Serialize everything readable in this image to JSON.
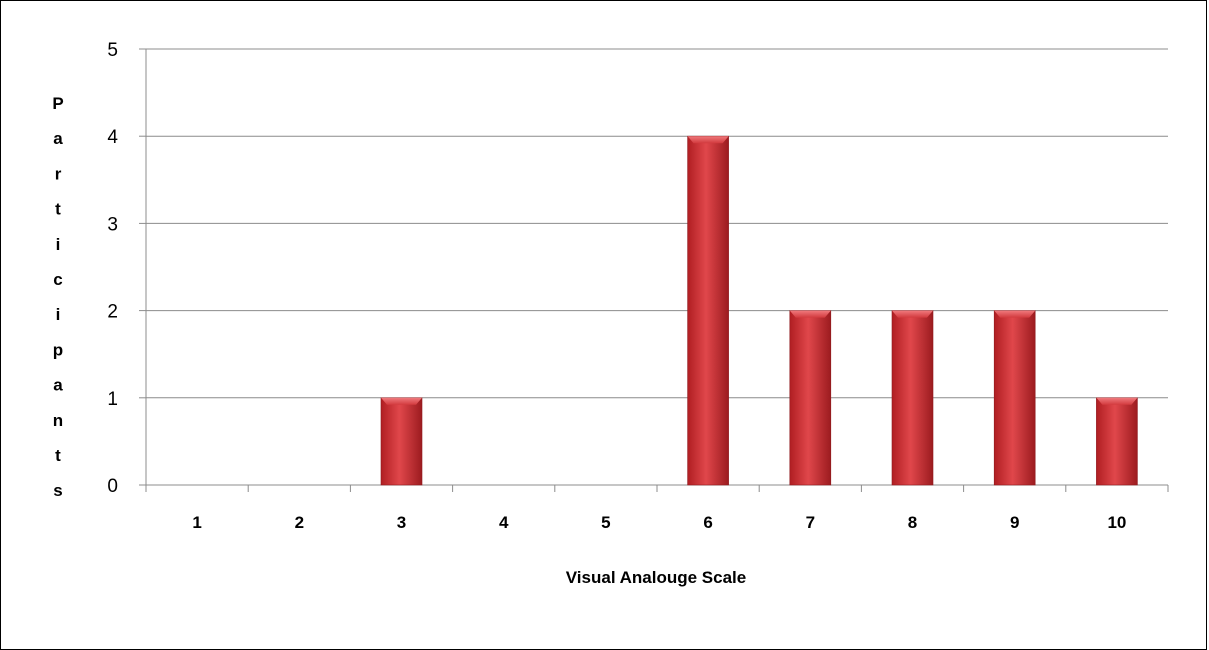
{
  "chart_data": {
    "type": "bar",
    "title": "",
    "xlabel": "Visual Analouge Scale",
    "ylabel": "Participants",
    "categories": [
      "1",
      "2",
      "3",
      "4",
      "5",
      "6",
      "7",
      "8",
      "9",
      "10"
    ],
    "values": [
      0,
      0,
      1,
      0,
      0,
      4,
      2,
      2,
      2,
      1
    ],
    "ylim": [
      0,
      5
    ],
    "yticks": [
      "0",
      "1",
      "2",
      "3",
      "4",
      "5"
    ],
    "grid": true,
    "legend": "none",
    "colors": {
      "bar": "#c0282d",
      "bar_light": "#e65458",
      "bar_dark": "#8f1a1e",
      "grid": "#8c8c8c"
    }
  }
}
